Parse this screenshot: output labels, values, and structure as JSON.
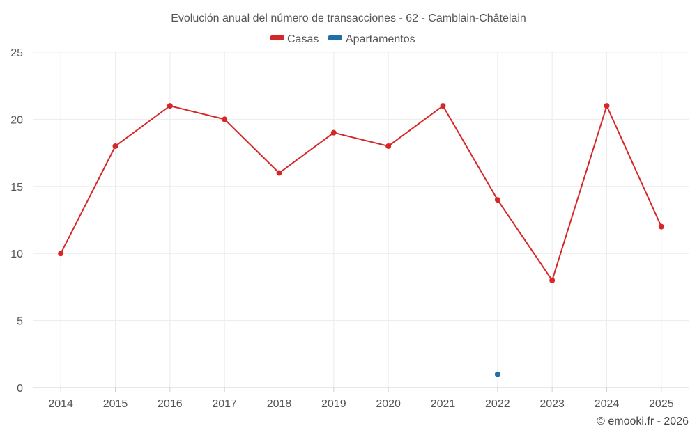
{
  "chart_data": {
    "type": "line",
    "title": "Evolución anual del número de transacciones - 62 - Camblain-Châtelain",
    "categories": [
      "2014",
      "2015",
      "2016",
      "2017",
      "2018",
      "2019",
      "2020",
      "2021",
      "2022",
      "2023",
      "2024",
      "2025"
    ],
    "series": [
      {
        "name": "Casas",
        "color": "#d62728",
        "values": [
          10,
          18,
          21,
          20,
          16,
          19,
          18,
          21,
          14,
          8,
          21,
          12
        ]
      },
      {
        "name": "Apartamentos",
        "color": "#1f6fa8",
        "values": [
          null,
          null,
          null,
          null,
          null,
          null,
          null,
          null,
          1,
          null,
          null,
          null
        ]
      }
    ],
    "ylim": [
      0,
      25
    ],
    "yticks": [
      0,
      5,
      10,
      15,
      20,
      25
    ],
    "xlabel": "",
    "ylabel": "",
    "grid": true,
    "legend": "top-center",
    "credit": "© emooki.fr - 2026"
  }
}
